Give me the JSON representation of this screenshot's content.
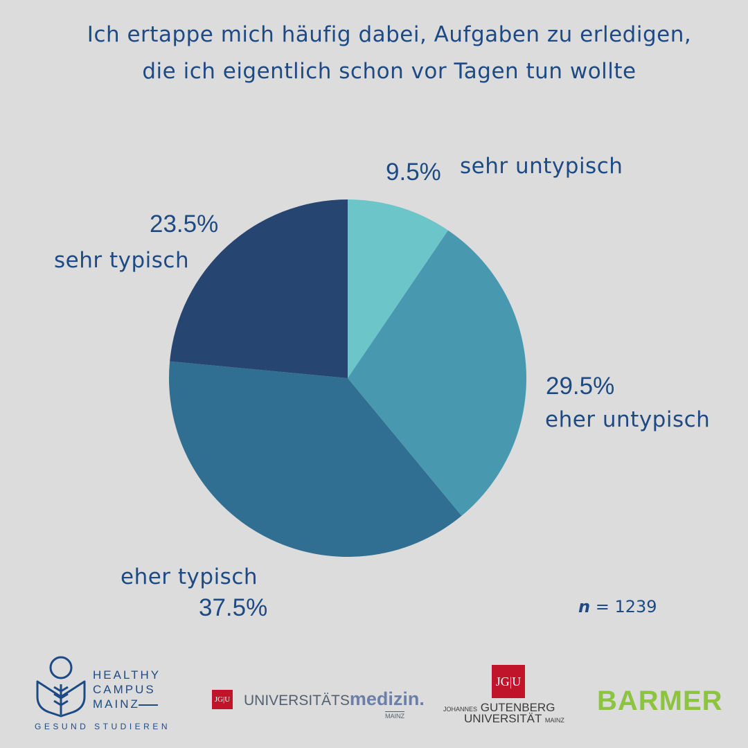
{
  "title": {
    "line1": "Ich ertappe mich häufig dabei, Aufgaben zu erledigen,",
    "line2": "die ich eigentlich schon vor Tagen tun wollte"
  },
  "chart_data": {
    "type": "pie",
    "title": "Ich ertappe mich häufig dabei, Aufgaben zu erledigen, die ich eigentlich schon vor Tagen tun wollte",
    "slices": [
      {
        "label": "sehr untypisch",
        "value": 9.5,
        "pct_label": "9.5%",
        "color": "#6cc5c8"
      },
      {
        "label": "eher untypisch",
        "value": 29.5,
        "pct_label": "29.5%",
        "color": "#4899b0"
      },
      {
        "label": "eher typisch",
        "value": 37.5,
        "pct_label": "37.5%",
        "color": "#306f92"
      },
      {
        "label": "sehr typisch",
        "value": 23.5,
        "pct_label": "23.5%",
        "color": "#264570"
      }
    ],
    "start": "12 o'clock",
    "direction": "clockwise",
    "n_label": "n",
    "n_value": "= 1239"
  },
  "colors": {
    "background": "#dcdcdc",
    "text": "#1d4a84",
    "jgu_red": "#c0142a",
    "barmer_green": "#8cc43f"
  },
  "logos": {
    "healthy_campus": {
      "line1": "HEALTHY",
      "line2": "CAMPUS",
      "line3": "MAINZ",
      "sub": "GESUND STUDIEREN"
    },
    "jgu_mark_small": "JG|U",
    "unimedizin": {
      "prefix": "UNIVERSITÄTS",
      "main": "medizin.",
      "sub": "MAINZ"
    },
    "jgu_mark": "JG|U",
    "jgu": {
      "small1": "JOHANNES",
      "word1": "GUTENBERG",
      "word2": "UNIVERSITÄT",
      "small2": "MAINZ"
    },
    "barmer": "BARMER"
  }
}
